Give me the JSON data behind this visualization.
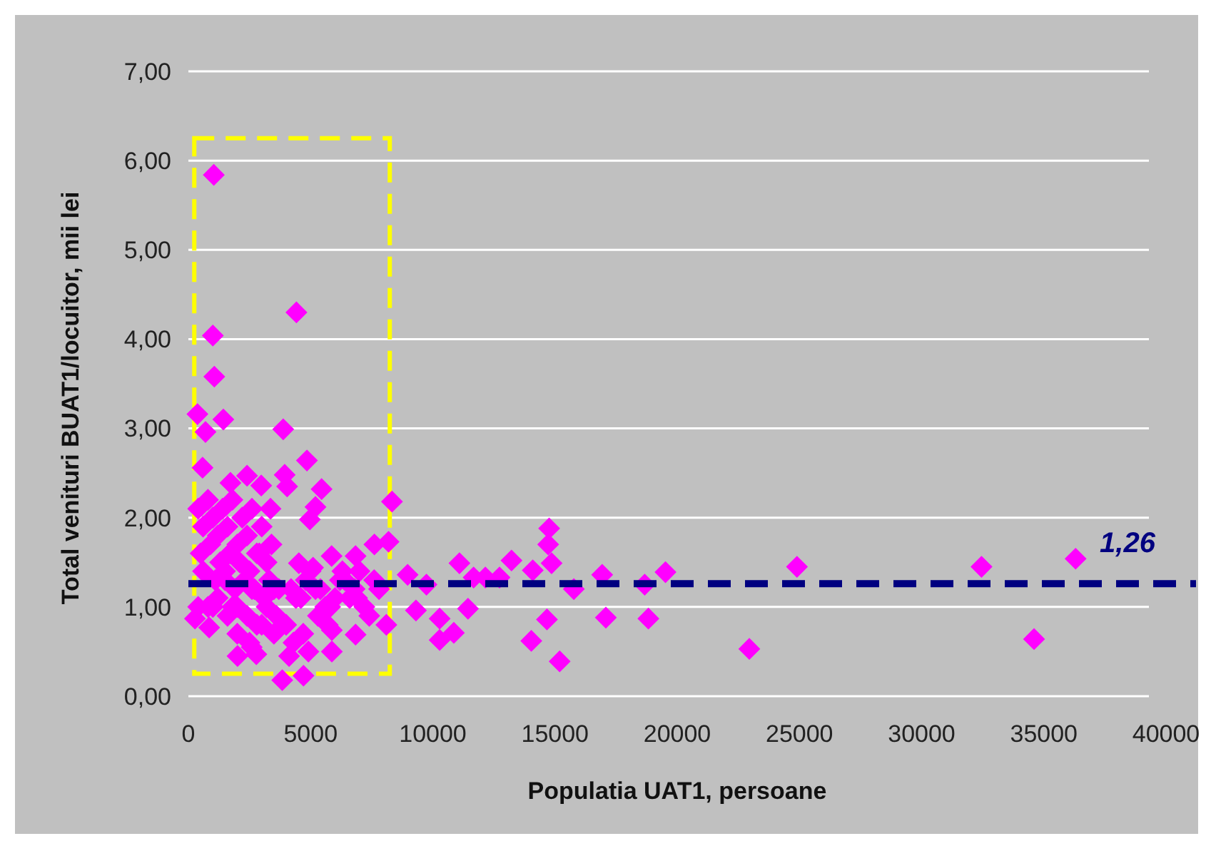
{
  "chart_data": {
    "type": "scatter",
    "xlabel": "Populatia UAT1, persoane",
    "ylabel": "Total venituri BUAT1/locuitor, mii lei",
    "xlim": [
      0,
      40000
    ],
    "xticks": [
      0,
      5000,
      10000,
      15000,
      20000,
      25000,
      30000,
      35000,
      40000
    ],
    "ylim": [
      0,
      7
    ],
    "yticks": [
      {
        "value": 0,
        "label": "0,00"
      },
      {
        "value": 1,
        "label": "1,00"
      },
      {
        "value": 2,
        "label": "2,00"
      },
      {
        "value": 3,
        "label": "3,00"
      },
      {
        "value": 4,
        "label": "4,00"
      },
      {
        "value": 5,
        "label": "5,00"
      },
      {
        "value": 6,
        "label": "6,00"
      },
      {
        "value": 7,
        "label": "7,00"
      }
    ],
    "grid": "y",
    "marker": "diamond",
    "ref_lines": [
      {
        "axis": "y",
        "value": 1.26,
        "label": "1,26",
        "color": "#000080",
        "line_style": "dashed"
      }
    ],
    "series": [
      {
        "color": "#ff00ff",
        "x": [
          1040,
          4420,
          1000,
          1060,
          370,
          1430,
          700,
          3880,
          4850,
          580,
          3940,
          1720,
          2400,
          2980,
          5450,
          4040,
          5200,
          3360,
          4970,
          8330,
          7610,
          8190,
          5860,
          6840,
          4520,
          5100,
          8970,
          9310,
          8100,
          5870,
          6840,
          2010,
          2780,
          4120,
          4910,
          5870,
          3840,
          4710,
          2590,
          850,
          270,
          9740,
          10280,
          10860,
          10280,
          11090,
          11440,
          11670,
          12150,
          12730,
          13220,
          14090,
          14760,
          14720,
          14860,
          14030,
          14670,
          15190,
          15770,
          16930,
          17080,
          18670,
          18820,
          19520,
          22950,
          24900,
          32450,
          36300,
          34600,
          400,
          600,
          800,
          1000,
          1200,
          1400,
          1600,
          1800,
          2000,
          2200,
          2400,
          2600,
          2800,
          3000,
          3200,
          3400,
          500,
          900,
          1300,
          1700,
          2100,
          2500,
          2900,
          3300,
          3700,
          600,
          1100,
          1500,
          1900,
          2300,
          2700,
          3100,
          3500,
          400,
          800,
          1200,
          1600,
          2000,
          2400,
          2800,
          3200,
          3600,
          4000,
          4400,
          4800,
          5200,
          5600,
          6000,
          6400,
          6800,
          7200,
          7600,
          4200,
          4600,
          5000,
          5400,
          5800,
          6200,
          6600,
          7000,
          7400,
          7800,
          1000,
          1500,
          2000,
          2500,
          3000,
          3500,
          4300,
          4700,
          5300,
          5700,
          6300,
          6900,
          1800,
          2600
        ],
        "values": [
          5.84,
          4.3,
          4.04,
          3.58,
          3.16,
          3.1,
          2.96,
          2.99,
          2.64,
          2.56,
          2.48,
          2.39,
          2.47,
          2.36,
          2.32,
          2.35,
          2.12,
          2.1,
          1.98,
          2.18,
          1.7,
          1.73,
          1.57,
          1.57,
          1.49,
          1.44,
          1.36,
          0.96,
          0.8,
          0.74,
          0.69,
          0.45,
          0.47,
          0.45,
          0.5,
          0.5,
          0.18,
          0.23,
          0.55,
          0.77,
          0.87,
          1.25,
          0.63,
          0.71,
          0.87,
          1.49,
          0.98,
          1.33,
          1.33,
          1.33,
          1.52,
          1.41,
          1.88,
          1.7,
          1.49,
          0.62,
          0.86,
          0.39,
          1.2,
          1.36,
          0.88,
          1.25,
          0.87,
          1.39,
          0.53,
          1.45,
          1.45,
          1.54,
          0.64,
          2.1,
          1.9,
          2.2,
          2.0,
          1.8,
          2.1,
          1.9,
          2.2,
          1.7,
          2.0,
          1.8,
          2.1,
          1.6,
          1.9,
          1.5,
          1.7,
          1.6,
          1.7,
          1.5,
          1.6,
          1.5,
          1.4,
          1.6,
          1.3,
          1.2,
          1.4,
          1.3,
          1.4,
          1.2,
          1.3,
          1.2,
          1.1,
          1.2,
          1.0,
          1.0,
          1.1,
          0.9,
          1.0,
          0.9,
          0.8,
          1.0,
          0.9,
          0.8,
          1.1,
          1.3,
          1.2,
          1.0,
          1.1,
          1.3,
          1.2,
          1.0,
          1.3,
          1.2,
          1.1,
          1.4,
          1.2,
          1.0,
          1.3,
          1.1,
          1.4,
          0.9,
          1.2,
          1.0,
          1.3,
          0.7,
          0.6,
          0.8,
          0.7,
          0.6,
          0.7,
          0.9,
          0.8,
          1.4,
          1.1,
          1.0,
          1.2
        ]
      }
    ]
  }
}
